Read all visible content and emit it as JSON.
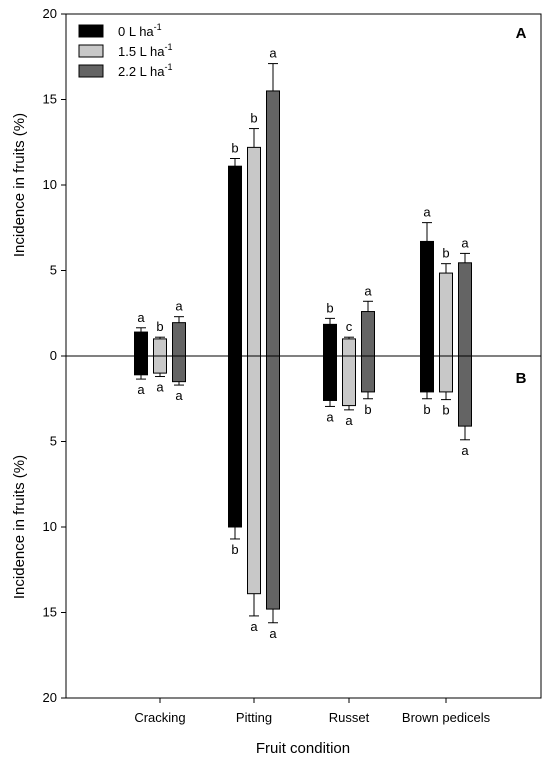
{
  "chart_data": {
    "type": "bar",
    "xlabel": "Fruit condition",
    "ylabel_top": "Incidence in fruits (%)",
    "ylabel_bottom": "Incidence in fruits (%)",
    "panel_top": "A",
    "panel_bottom": "B",
    "ylim_top": [
      0,
      20
    ],
    "ylim_bottom": [
      0,
      20
    ],
    "yticks": [
      0,
      5,
      10,
      15,
      20
    ],
    "grid": false,
    "legend_position": "top-left",
    "categories": [
      "Cracking",
      "Pitting",
      "Russet",
      "Brown pedicels"
    ],
    "series": [
      {
        "name": "0 L ha",
        "name_sup": "-1",
        "color": "#000000",
        "top": [
          1.4,
          11.1,
          1.85,
          6.7
        ],
        "top_err": [
          0.25,
          0.45,
          0.35,
          1.1
        ],
        "top_letters": [
          "a",
          "b",
          "b",
          "a"
        ],
        "bottom": [
          1.1,
          10.0,
          2.6,
          2.1
        ],
        "bottom_err": [
          0.25,
          0.7,
          0.35,
          0.4
        ],
        "bottom_letters": [
          "a",
          "b",
          "a",
          "b"
        ]
      },
      {
        "name": "1.5 L ha",
        "name_sup": "-1",
        "color": "#c8c8c8",
        "top": [
          1.0,
          12.2,
          1.0,
          4.85
        ],
        "top_err": [
          0.1,
          1.1,
          0.1,
          0.55
        ],
        "top_letters": [
          "b",
          "b",
          "c",
          "b"
        ],
        "bottom": [
          1.0,
          13.9,
          2.9,
          2.1
        ],
        "bottom_err": [
          0.2,
          1.3,
          0.25,
          0.45
        ],
        "bottom_letters": [
          "a",
          "a",
          "a",
          "b"
        ]
      },
      {
        "name": "2.2 L ha",
        "name_sup": "-1",
        "color": "#646464",
        "top": [
          1.95,
          15.5,
          2.6,
          5.45
        ],
        "top_err": [
          0.35,
          1.6,
          0.6,
          0.55
        ],
        "top_letters": [
          "a",
          "a",
          "a",
          "a"
        ],
        "bottom": [
          1.5,
          14.8,
          2.1,
          4.1
        ],
        "bottom_err": [
          0.2,
          0.8,
          0.4,
          0.8
        ],
        "bottom_letters": [
          "a",
          "a",
          "b",
          "a"
        ]
      }
    ]
  }
}
